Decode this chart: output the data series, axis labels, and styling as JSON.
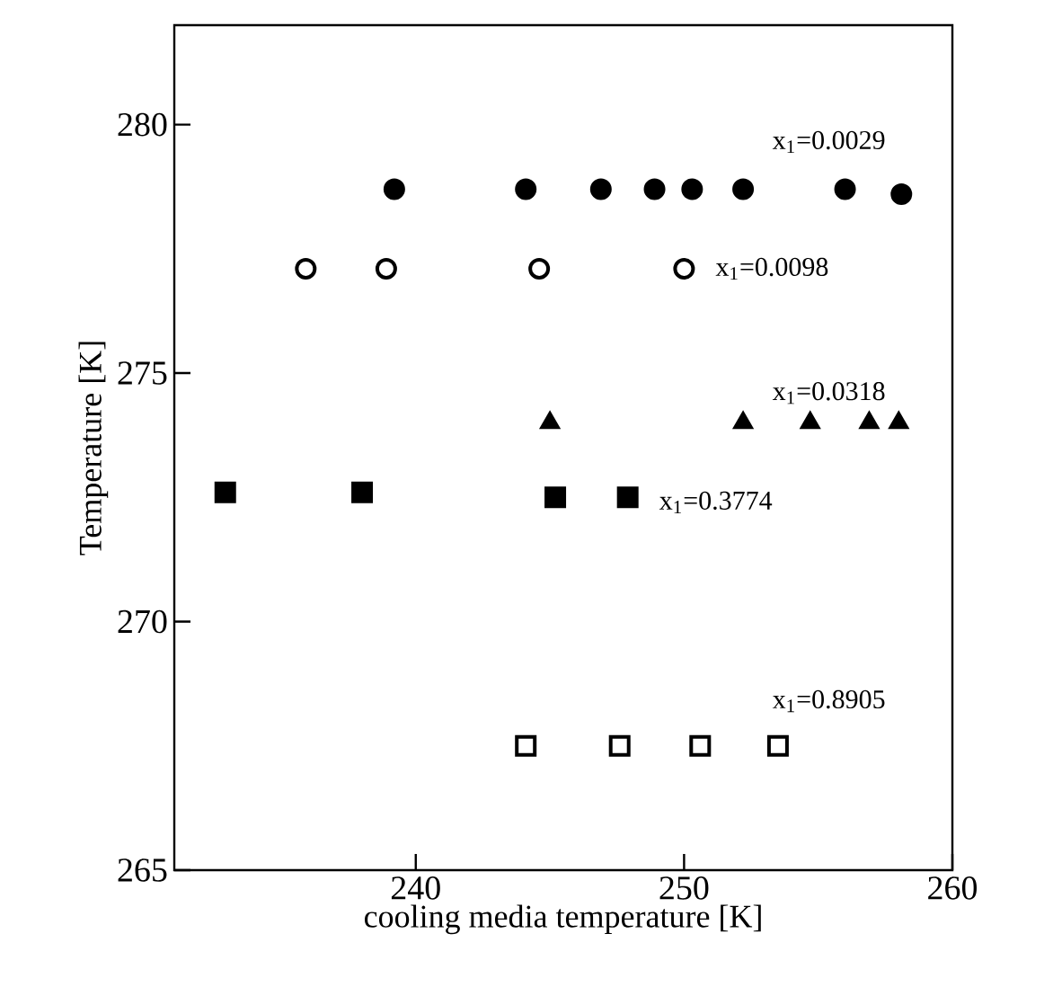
{
  "chart_data": {
    "type": "scatter",
    "xlabel": "cooling media temperature [K]",
    "ylabel": "Temperature [K]",
    "xlim": [
      231,
      260
    ],
    "xticks": [
      240,
      250,
      260
    ],
    "ylim": [
      265,
      282
    ],
    "yticks": [
      265,
      270,
      275,
      280
    ],
    "grid": false,
    "series": [
      {
        "name": "x$_{1}$=0.0029",
        "color": "#000000",
        "marker": "circle",
        "x": [
          239.2,
          244.1,
          246.9,
          248.9,
          250.3,
          252.2,
          256.0,
          258.1
        ],
        "values": [
          278.7,
          278.7,
          278.7,
          278.7,
          278.7,
          278.7,
          278.7,
          278.6
        ]
      },
      {
        "name": "x$_{1}$=0.0098",
        "color": "#000000",
        "marker": "circle",
        "x": [
          235.9,
          238.9,
          244.6,
          250.0
        ],
        "values": [
          277.1,
          277.1,
          277.1,
          277.1
        ]
      },
      {
        "name": "x$_{1}$=0.0318",
        "color": "#000000",
        "marker": "triangle",
        "x": [
          245.0,
          252.2,
          254.7,
          256.9,
          258.0
        ],
        "values": [
          274.0,
          274.0,
          274.0,
          274.0,
          274.0
        ]
      },
      {
        "name": "x$_{1}$=0.3774",
        "color": "#000000",
        "marker": "square",
        "x": [
          232.9,
          238.0,
          245.2,
          247.9
        ],
        "values": [
          272.6,
          272.6,
          272.5,
          272.5
        ]
      },
      {
        "name": "x$_{1}$=0.8905",
        "color": "#000000",
        "marker": "square",
        "x": [
          244.1,
          247.6,
          250.6,
          253.5
        ],
        "values": [
          267.5,
          267.5,
          267.5,
          267.5
        ]
      }
    ]
  }
}
